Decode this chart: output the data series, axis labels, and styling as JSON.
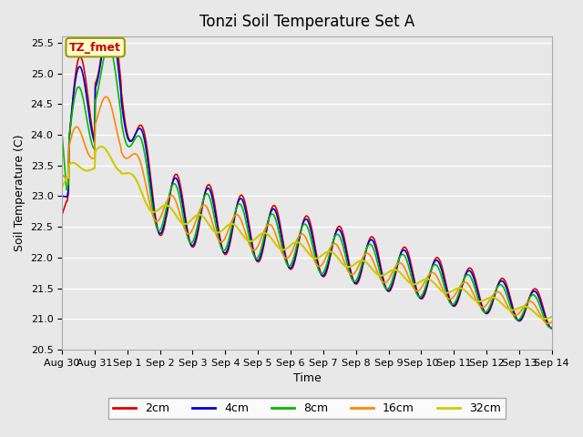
{
  "title": "Tonzi Soil Temperature Set A",
  "xlabel": "Time",
  "ylabel": "Soil Temperature (C)",
  "ylim": [
    20.5,
    25.6
  ],
  "legend_label": "TZ_fmet",
  "legend_bg": "#ffffcc",
  "legend_border": "#999900",
  "series_labels": [
    "2cm",
    "4cm",
    "8cm",
    "16cm",
    "32cm"
  ],
  "series_colors": [
    "#dd0000",
    "#0000cc",
    "#00bb00",
    "#ff8800",
    "#cccc00"
  ],
  "bg_color": "#e8e8e8",
  "xtick_labels": [
    "Aug 30",
    "Aug 31",
    "Sep 1",
    "Sep 2",
    "Sep 3",
    "Sep 4",
    "Sep 5",
    "Sep 6",
    "Sep 7",
    "Sep 8",
    "Sep 9",
    "Sep 10",
    "Sep 11",
    "Sep 12",
    "Sep 13",
    "Sep 14"
  ],
  "num_days": 16,
  "pts_per_day": 48
}
